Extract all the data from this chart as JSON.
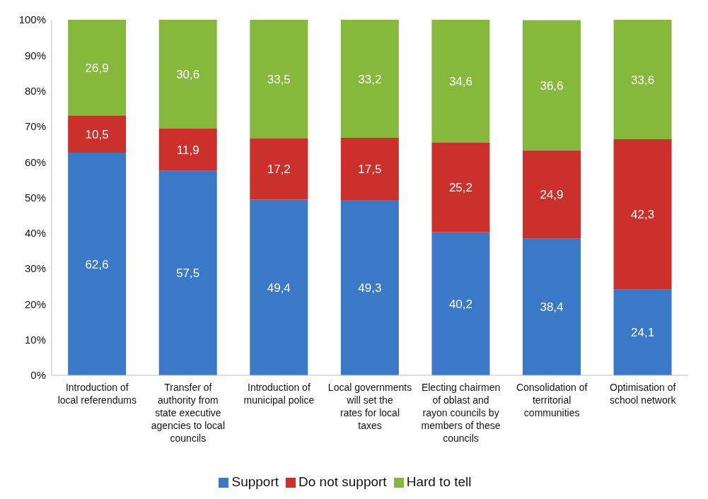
{
  "chart_data": {
    "type": "bar",
    "stacked": true,
    "categories": [
      "Introduction of local referendums",
      "Transfer of authority from state executive agencies to local councils",
      "Introduction of municipal police",
      "Local governments will set the rates for local taxes",
      "Electing chairmen of oblast and rayon councils by members of these councils",
      "Consolidation of territorial communities",
      "Optimisation of school network"
    ],
    "series": [
      {
        "name": "Support",
        "color": "#3a78c8",
        "values": [
          62.6,
          57.5,
          49.4,
          49.3,
          40.2,
          38.4,
          24.1
        ],
        "value_labels": [
          "62,6",
          "57,5",
          "49,4",
          "49,3",
          "40,2",
          "38,4",
          "24,1"
        ]
      },
      {
        "name": "Do not support",
        "color": "#cc302b",
        "values": [
          10.5,
          11.9,
          17.2,
          17.5,
          25.2,
          24.9,
          42.3
        ],
        "value_labels": [
          "10,5",
          "11,9",
          "17,2",
          "17,5",
          "25,2",
          "24,9",
          "42,3"
        ]
      },
      {
        "name": "Hard to tell",
        "color": "#86b83c",
        "values": [
          26.9,
          30.6,
          33.5,
          33.2,
          34.6,
          36.6,
          33.6
        ],
        "value_labels": [
          "26,9",
          "30,6",
          "33,5",
          "33,2",
          "34,6",
          "36,6",
          "33,6"
        ]
      }
    ],
    "ylim": [
      0,
      100
    ],
    "yticks": [
      {
        "value": 0,
        "label": "0%"
      },
      {
        "value": 10,
        "label": "10%"
      },
      {
        "value": 20,
        "label": "20%"
      },
      {
        "value": 30,
        "label": "30%"
      },
      {
        "value": 40,
        "label": "40%"
      },
      {
        "value": 50,
        "label": "50%"
      },
      {
        "value": 60,
        "label": "60%"
      },
      {
        "value": 70,
        "label": "70%"
      },
      {
        "value": 80,
        "label": "80%"
      },
      {
        "value": 90,
        "label": "90%"
      },
      {
        "value": 100,
        "label": "100%"
      }
    ],
    "legend": "bottom"
  }
}
